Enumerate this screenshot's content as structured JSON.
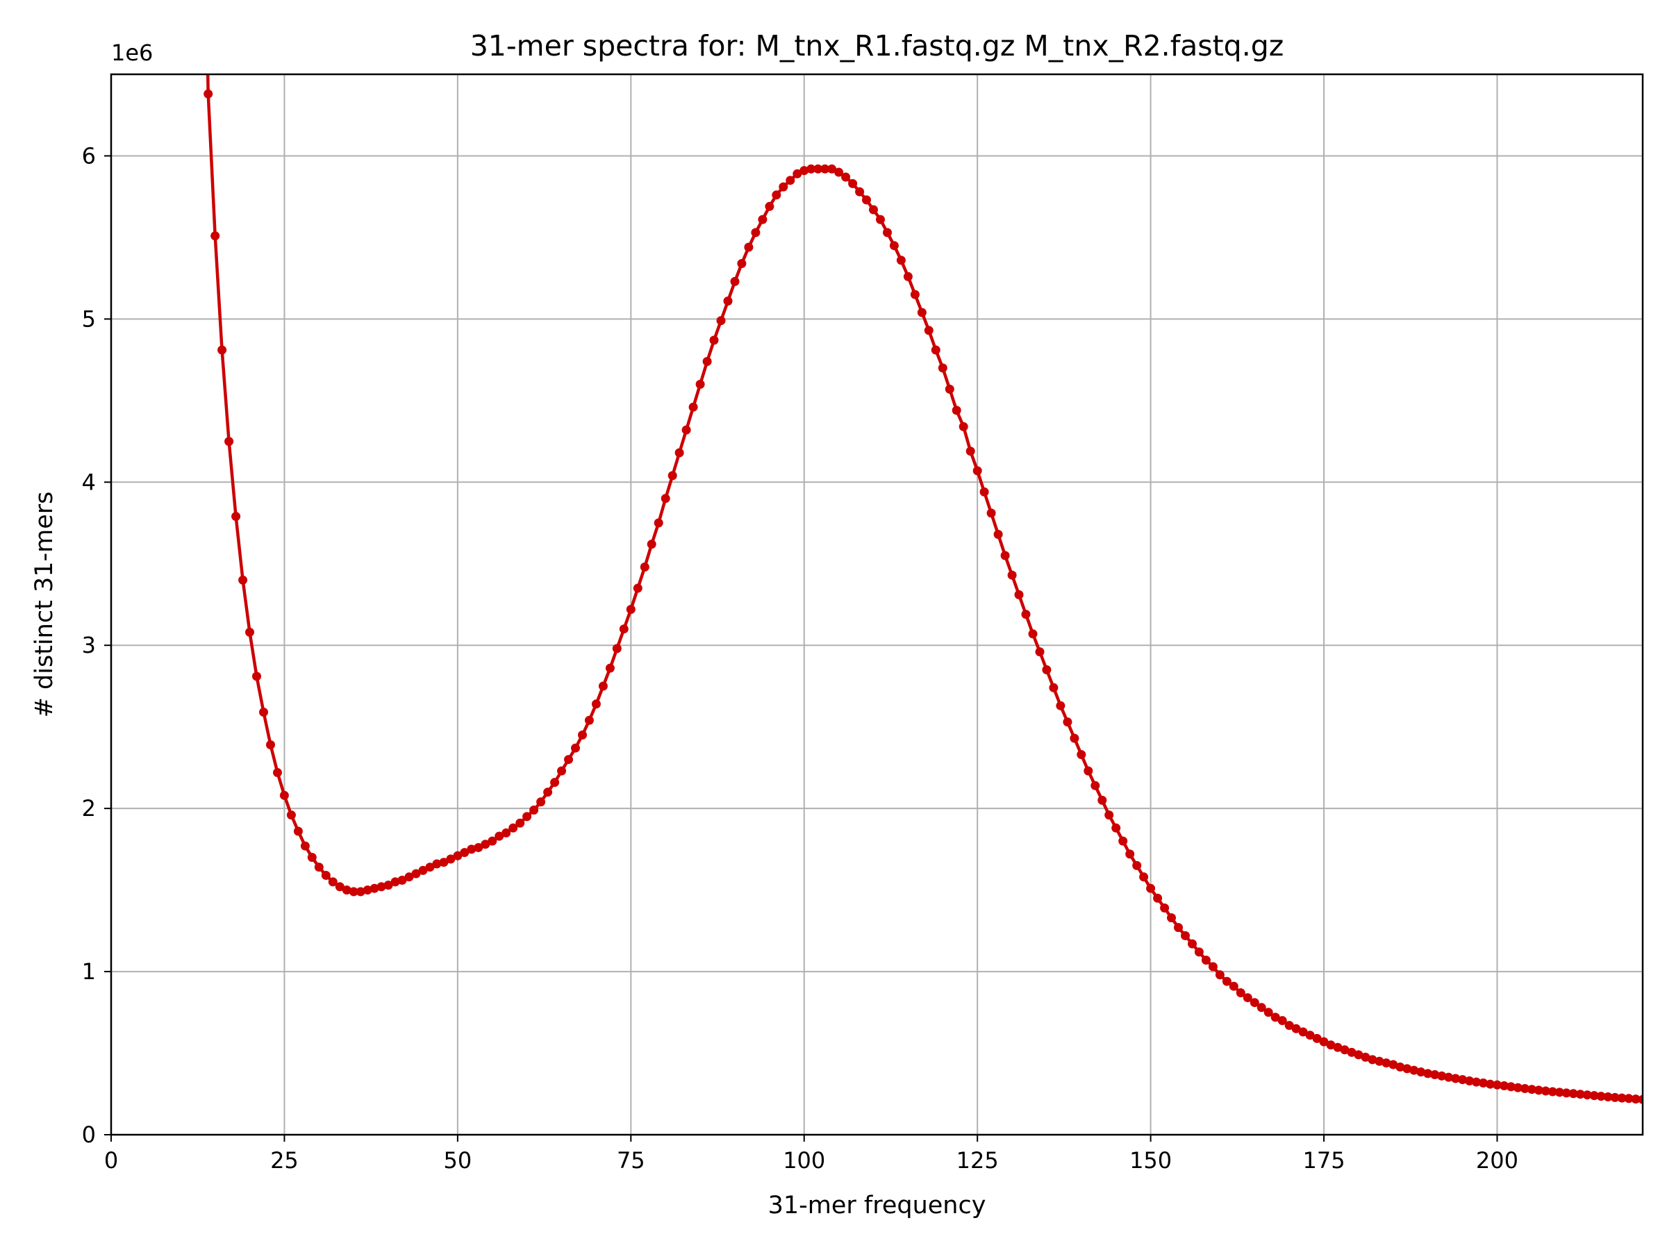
{
  "chart_data": {
    "type": "line",
    "title": "31-mer spectra for: M_tnx_R1.fastq.gz M_tnx_R2.fastq.gz",
    "xlabel": "31-mer frequency",
    "ylabel": "# distinct 31-mers",
    "y_multiplier_label": "1e6",
    "xlim": [
      0,
      221
    ],
    "ylim": [
      0,
      6.5
    ],
    "x_ticks": [
      0,
      25,
      50,
      75,
      100,
      125,
      150,
      175,
      200
    ],
    "y_ticks": [
      0,
      1,
      2,
      3,
      4,
      5,
      6
    ],
    "grid": true,
    "series": [
      {
        "color": "#cc0000",
        "marker": "circle",
        "x_start": 14,
        "x_step": 1,
        "values": [
          6.38,
          5.51,
          4.81,
          4.25,
          3.79,
          3.4,
          3.08,
          2.81,
          2.59,
          2.39,
          2.22,
          2.08,
          1.96,
          1.86,
          1.77,
          1.7,
          1.64,
          1.59,
          1.55,
          1.52,
          1.5,
          1.49,
          1.49,
          1.5,
          1.51,
          1.52,
          1.53,
          1.55,
          1.56,
          1.58,
          1.6,
          1.62,
          1.64,
          1.66,
          1.67,
          1.69,
          1.71,
          1.73,
          1.75,
          1.76,
          1.78,
          1.8,
          1.83,
          1.85,
          1.88,
          1.91,
          1.95,
          1.99,
          2.04,
          2.1,
          2.16,
          2.23,
          2.3,
          2.37,
          2.45,
          2.54,
          2.64,
          2.75,
          2.86,
          2.98,
          3.1,
          3.22,
          3.35,
          3.48,
          3.62,
          3.75,
          3.9,
          4.04,
          4.18,
          4.32,
          4.46,
          4.6,
          4.74,
          4.87,
          4.99,
          5.11,
          5.23,
          5.34,
          5.44,
          5.53,
          5.61,
          5.69,
          5.76,
          5.81,
          5.85,
          5.89,
          5.91,
          5.92,
          5.92,
          5.92,
          5.92,
          5.9,
          5.87,
          5.83,
          5.78,
          5.73,
          5.67,
          5.61,
          5.53,
          5.45,
          5.36,
          5.26,
          5.15,
          5.04,
          4.93,
          4.81,
          4.7,
          4.57,
          4.44,
          4.34,
          4.19,
          4.07,
          3.94,
          3.81,
          3.68,
          3.55,
          3.43,
          3.31,
          3.19,
          3.07,
          2.96,
          2.85,
          2.74,
          2.63,
          2.53,
          2.43,
          2.33,
          2.23,
          2.14,
          2.05,
          1.96,
          1.88,
          1.8,
          1.72,
          1.65,
          1.58,
          1.51,
          1.45,
          1.39,
          1.33,
          1.27,
          1.22,
          1.17,
          1.12,
          1.07,
          1.03,
          0.98,
          0.94,
          0.91,
          0.87,
          0.84,
          0.81,
          0.78,
          0.75,
          0.72,
          0.7,
          0.67,
          0.65,
          0.63,
          0.61,
          0.59,
          0.57,
          0.55,
          0.535,
          0.52,
          0.505,
          0.49,
          0.475,
          0.46,
          0.45,
          0.44,
          0.43,
          0.415,
          0.405,
          0.395,
          0.385,
          0.375,
          0.368,
          0.36,
          0.352,
          0.345,
          0.338,
          0.33,
          0.323,
          0.317,
          0.31,
          0.305,
          0.3,
          0.294,
          0.288,
          0.283,
          0.278,
          0.273,
          0.268,
          0.264,
          0.26,
          0.256,
          0.252,
          0.248,
          0.244,
          0.24,
          0.236,
          0.232,
          0.228,
          0.225,
          0.222,
          0.219,
          0.216,
          0.212,
          0.209
        ]
      }
    ]
  }
}
